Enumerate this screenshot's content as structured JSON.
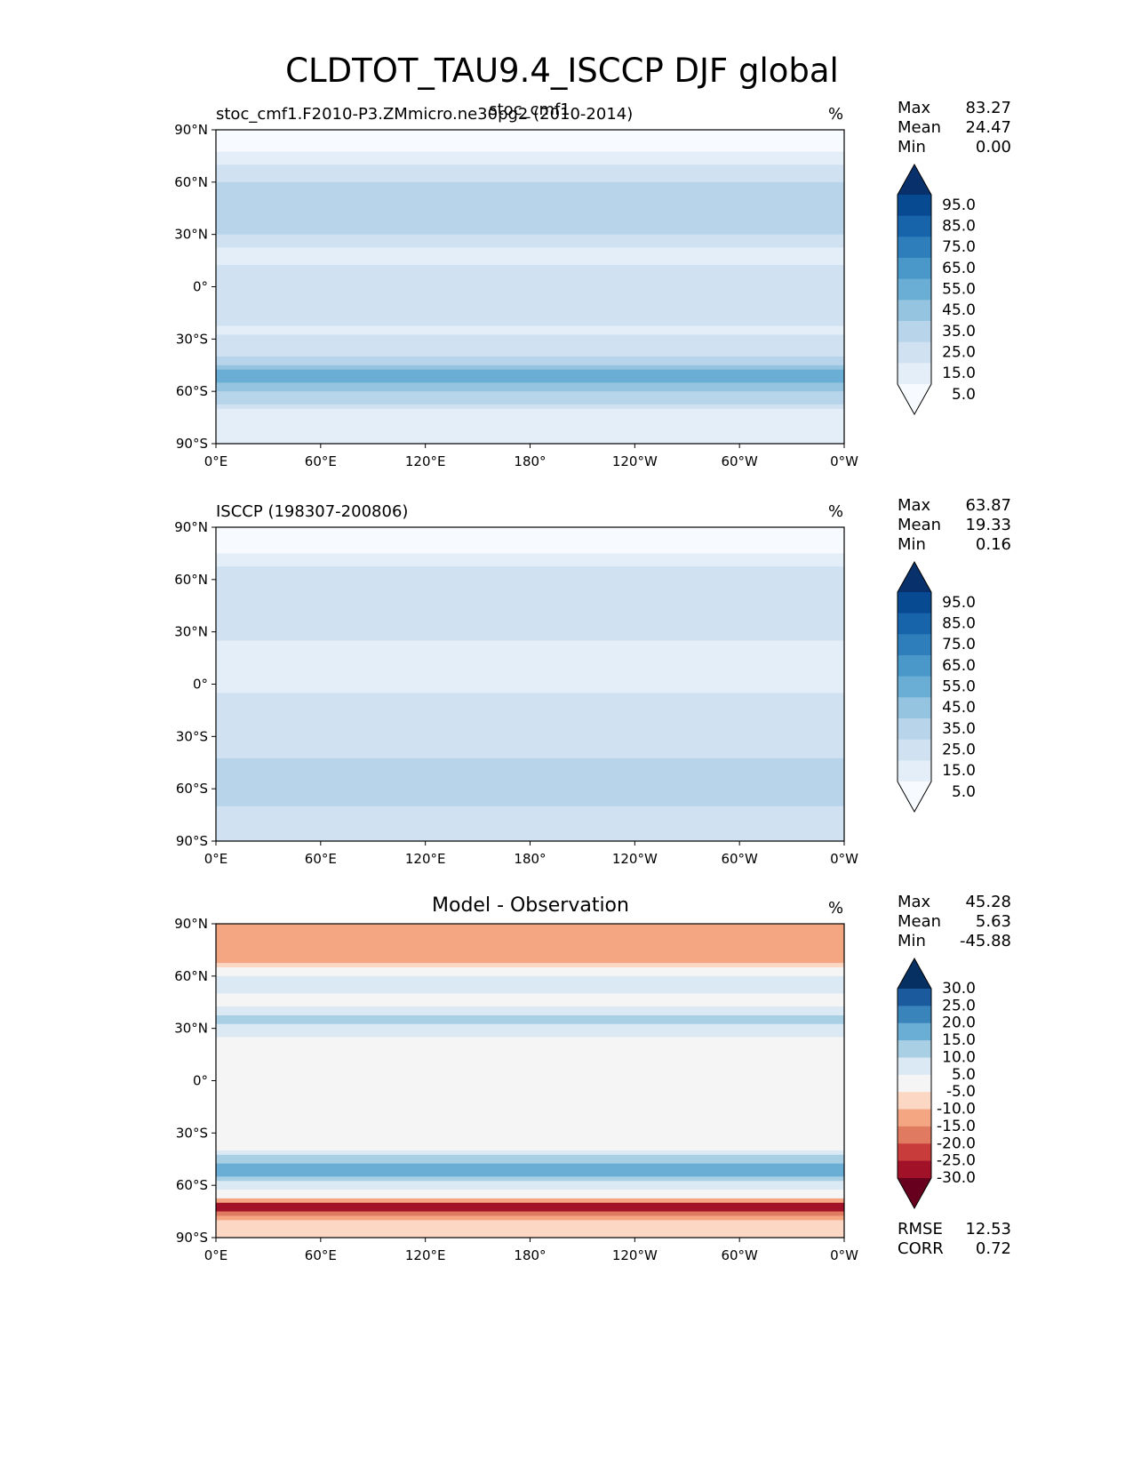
{
  "figure": {
    "title": "CLDTOT_TAU9.4_ISCCP DJF global"
  },
  "panels": [
    {
      "left_title": "stoc_cmf1.F2010-P3.ZMmicro.ne30pg2 (2010-2014)",
      "center_title": "stoc_cmf1",
      "units": "%",
      "stats": [
        {
          "key": "Max",
          "value": "83.27"
        },
        {
          "key": "Mean",
          "value": "24.47"
        },
        {
          "key": "Min",
          "value": "0.00"
        }
      ],
      "colorbar_labels": [
        "95.0",
        "85.0",
        "75.0",
        "65.0",
        "55.0",
        "45.0",
        "35.0",
        "25.0",
        "15.0",
        "5.0"
      ]
    },
    {
      "left_title": "ISCCP (198307-200806)",
      "center_title": "",
      "units": "%",
      "stats": [
        {
          "key": "Max",
          "value": "63.87"
        },
        {
          "key": "Mean",
          "value": "19.33"
        },
        {
          "key": "Min",
          "value": "0.16"
        }
      ],
      "colorbar_labels": [
        "95.0",
        "85.0",
        "75.0",
        "65.0",
        "55.0",
        "45.0",
        "35.0",
        "25.0",
        "15.0",
        "5.0"
      ]
    },
    {
      "left_title": "",
      "center_title": "Model - Observation",
      "units": "%",
      "stats": [
        {
          "key": "Max",
          "value": "45.28"
        },
        {
          "key": "Mean",
          "value": "5.63"
        },
        {
          "key": "Min",
          "value": "-45.88"
        }
      ],
      "colorbar_labels": [
        "30.0",
        "25.0",
        "20.0",
        "15.0",
        "10.0",
        "5.0",
        "-5.0",
        "-10.0",
        "-15.0",
        "-20.0",
        "-25.0",
        "-30.0"
      ],
      "extra_stats": [
        {
          "key": "RMSE",
          "value": "12.53"
        },
        {
          "key": "CORR",
          "value": "0.72"
        }
      ]
    }
  ],
  "chart_data": [
    {
      "type": "heatmap",
      "title": "stoc_cmf1",
      "x_ticks": [
        "0°E",
        "60°E",
        "120°E",
        "180°",
        "120°W",
        "60°W",
        "0°W"
      ],
      "y_ticks": [
        "90°N",
        "60°N",
        "30°N",
        "0°",
        "30°S",
        "60°S",
        "90°S"
      ],
      "xlim": [
        0,
        360
      ],
      "ylim": [
        -90,
        90
      ],
      "levels": [
        0,
        5,
        15,
        25,
        35,
        45,
        55,
        65,
        75,
        85,
        95,
        100
      ],
      "colors": [
        "#f7fbff",
        "#e3eef9",
        "#d0e2f2",
        "#b7d4ea",
        "#94c4df",
        "#6aaed6",
        "#4a98c9",
        "#2e7ebc",
        "#1764ab",
        "#084a91",
        "#08306b"
      ],
      "zonal_mean_profile": [
        {
          "lat": 80,
          "value": 2
        },
        {
          "lat": 70,
          "value": 15
        },
        {
          "lat": 60,
          "value": 25
        },
        {
          "lat": 45,
          "value": 35
        },
        {
          "lat": 35,
          "value": 30
        },
        {
          "lat": 20,
          "value": 12
        },
        {
          "lat": 5,
          "value": 18
        },
        {
          "lat": -10,
          "value": 18
        },
        {
          "lat": -25,
          "value": 14
        },
        {
          "lat": -40,
          "value": 25
        },
        {
          "lat": -50,
          "value": 50
        },
        {
          "lat": -58,
          "value": 40
        },
        {
          "lat": -65,
          "value": 28
        },
        {
          "lat": -75,
          "value": 5
        }
      ]
    },
    {
      "type": "heatmap",
      "title": "ISCCP (198307-200806)",
      "x_ticks": [
        "0°E",
        "60°E",
        "120°E",
        "180°",
        "120°W",
        "60°W",
        "0°W"
      ],
      "y_ticks": [
        "90°N",
        "60°N",
        "30°N",
        "0°",
        "30°S",
        "60°S",
        "90°S"
      ],
      "xlim": [
        0,
        360
      ],
      "ylim": [
        -90,
        90
      ],
      "levels": [
        0,
        5,
        15,
        25,
        35,
        45,
        55,
        65,
        75,
        85,
        95,
        100
      ],
      "colors": [
        "#f7fbff",
        "#e3eef9",
        "#d0e2f2",
        "#b7d4ea",
        "#94c4df",
        "#6aaed6",
        "#4a98c9",
        "#2e7ebc",
        "#1764ab",
        "#084a91",
        "#08306b"
      ],
      "zonal_mean_profile": [
        {
          "lat": 80,
          "value": 0
        },
        {
          "lat": 68,
          "value": 15
        },
        {
          "lat": 55,
          "value": 25
        },
        {
          "lat": 40,
          "value": 22
        },
        {
          "lat": 25,
          "value": 15
        },
        {
          "lat": 10,
          "value": 12
        },
        {
          "lat": -5,
          "value": 15
        },
        {
          "lat": -20,
          "value": 15
        },
        {
          "lat": -35,
          "value": 20
        },
        {
          "lat": -50,
          "value": 30
        },
        {
          "lat": -60,
          "value": 28
        },
        {
          "lat": -70,
          "value": 25
        },
        {
          "lat": -80,
          "value": 15
        }
      ]
    },
    {
      "type": "heatmap",
      "title": "Model - Observation",
      "x_ticks": [
        "0°E",
        "60°E",
        "120°E",
        "180°",
        "120°W",
        "60°W",
        "0°W"
      ],
      "y_ticks": [
        "90°N",
        "60°N",
        "30°N",
        "0°",
        "30°S",
        "60°S",
        "90°S"
      ],
      "xlim": [
        0,
        360
      ],
      "ylim": [
        -90,
        90
      ],
      "levels": [
        -35,
        -30,
        -25,
        -20,
        -15,
        -10,
        -5,
        5,
        10,
        15,
        20,
        25,
        30,
        35
      ],
      "colors": [
        "#67001f",
        "#a11228",
        "#c93c3c",
        "#e07b62",
        "#f4a683",
        "#fcd8c4",
        "#f5f5f5",
        "#dbe9f4",
        "#a9cfe5",
        "#6aaed6",
        "#3884bb",
        "#1c5a9e",
        "#053061"
      ],
      "zonal_mean_profile": [
        {
          "lat": 68,
          "value": -15
        },
        {
          "lat": 60,
          "value": 8
        },
        {
          "lat": 45,
          "value": 3
        },
        {
          "lat": 35,
          "value": 12
        },
        {
          "lat": 20,
          "value": 2
        },
        {
          "lat": 5,
          "value": 5
        },
        {
          "lat": -10,
          "value": 3
        },
        {
          "lat": -25,
          "value": 2
        },
        {
          "lat": -40,
          "value": 5
        },
        {
          "lat": -50,
          "value": 20
        },
        {
          "lat": -58,
          "value": 10
        },
        {
          "lat": -66,
          "value": 0
        },
        {
          "lat": -72,
          "value": -30
        },
        {
          "lat": -80,
          "value": -10
        }
      ]
    }
  ]
}
